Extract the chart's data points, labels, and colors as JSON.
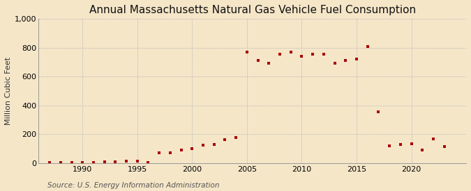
{
  "title": "Annual Massachusetts Natural Gas Vehicle Fuel Consumption",
  "ylabel": "Million Cubic Feet",
  "source": "Source: U.S. Energy Information Administration",
  "background_color": "#f5e6c8",
  "marker_color": "#aa0000",
  "years": [
    1987,
    1988,
    1989,
    1990,
    1991,
    1992,
    1993,
    1994,
    1995,
    1996,
    1997,
    1998,
    1999,
    2000,
    2001,
    2002,
    2003,
    2004,
    2005,
    2006,
    2007,
    2008,
    2009,
    2010,
    2011,
    2012,
    2013,
    2014,
    2015,
    2016,
    2017,
    2018,
    2019,
    2020,
    2021,
    2022,
    2023
  ],
  "values": [
    2,
    5,
    3,
    5,
    4,
    10,
    10,
    14,
    12,
    5,
    70,
    70,
    90,
    100,
    125,
    130,
    160,
    175,
    770,
    710,
    695,
    755,
    770,
    740,
    755,
    755,
    695,
    710,
    720,
    810,
    355,
    120,
    130,
    135,
    90,
    165,
    115
  ],
  "xlim": [
    1986,
    2025
  ],
  "ylim": [
    0,
    1000
  ],
  "yticks": [
    0,
    200,
    400,
    600,
    800,
    1000
  ],
  "xticks": [
    1990,
    1995,
    2000,
    2005,
    2010,
    2015,
    2020
  ],
  "grid_color": "#bbbbbb",
  "title_fontsize": 11,
  "label_fontsize": 8,
  "tick_fontsize": 8,
  "source_fontsize": 7.5,
  "marker_size": 3.5
}
